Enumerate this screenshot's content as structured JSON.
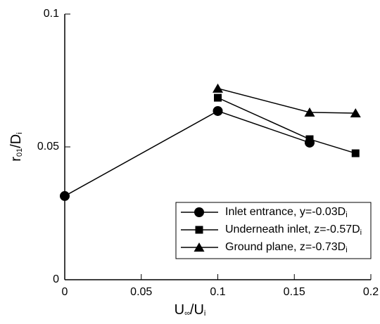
{
  "chart_data": {
    "type": "line",
    "x_label": "U∞/Ui",
    "y_label": "r01/Di",
    "xlim": [
      0,
      0.2
    ],
    "xticks": [
      0,
      0.05,
      0.1,
      0.15,
      0.2
    ],
    "ylim": [
      0,
      0.1
    ],
    "yticks": [
      0,
      0.05,
      0.1
    ],
    "legend": "lower right",
    "series": [
      {
        "name": "Inlet entrance, y=-0.03Di",
        "color": "#000000",
        "marker": "circle",
        "x": [
          0,
          0.1,
          0.16
        ],
        "values": [
          0.0315,
          0.0635,
          0.0516
        ]
      },
      {
        "name": "Underneath inlet, z=-0.57Di",
        "color": "#000000",
        "marker": "square",
        "x": [
          0.1,
          0.16,
          0.19
        ],
        "values": [
          0.0685,
          0.0529,
          0.0476
        ]
      },
      {
        "name": "Ground plane, z=-0.73Di",
        "color": "#000000",
        "marker": "triangle",
        "x": [
          0.1,
          0.16,
          0.19
        ],
        "values": [
          0.072,
          0.063,
          0.0627
        ]
      }
    ]
  }
}
